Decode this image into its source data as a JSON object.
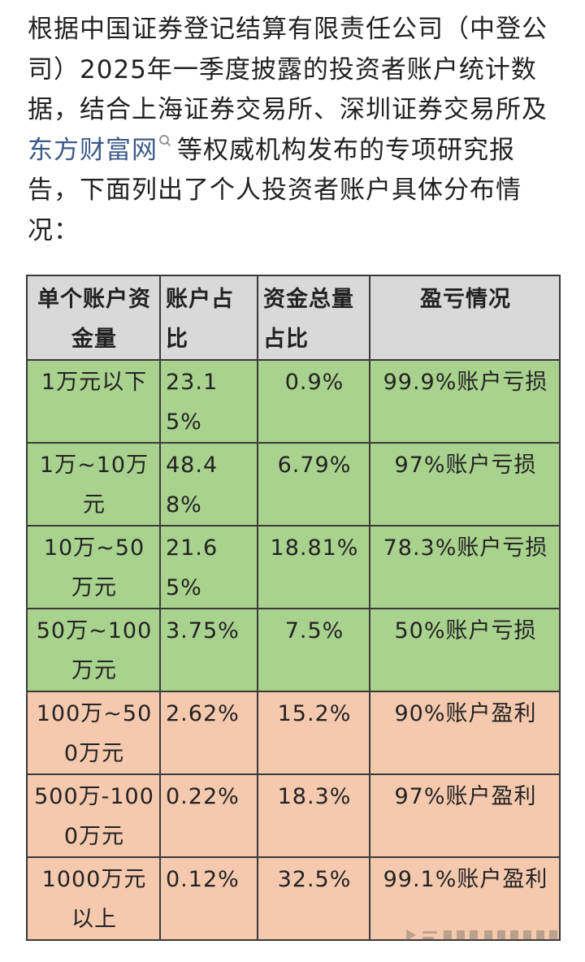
{
  "intro": {
    "text_before": "根据中国证券登记结算有限责任公司（中登公司）2025年一季度披露的投资者账户统计数据，结合上海证券交易所、深圳证券交易所及",
    "link_text": "东方财富网",
    "link_icon": "search-icon",
    "text_after": "等权威机构发布的专项研究报告，下面列出了个人投资者账户具体分布情况："
  },
  "table": {
    "headers": [
      "单个账户资金量",
      "账户占比",
      "资金总量占比",
      "盈亏情况"
    ],
    "rows": [
      {
        "type": "loss",
        "cells": [
          "1万元以下",
          "23.15%",
          "0.9%",
          "99.9%账户亏损"
        ]
      },
      {
        "type": "loss",
        "cells": [
          "1万~10万元",
          "48.48%",
          "6.79%",
          "97%账户亏损"
        ]
      },
      {
        "type": "loss",
        "cells": [
          "10万~50万元",
          "21.65%",
          "18.81%",
          "78.3%账户亏损"
        ]
      },
      {
        "type": "loss",
        "cells": [
          "50万~100万元",
          "3.75%",
          "7.5%",
          "50%账户亏损"
        ]
      },
      {
        "type": "profit",
        "cells": [
          "100万~500万元",
          "2.62%",
          "15.2%",
          "90%账户盈利"
        ]
      },
      {
        "type": "profit",
        "cells": [
          "500万-1000万元",
          "0.22%",
          "18.3%",
          "97%账户盈利"
        ]
      },
      {
        "type": "profit",
        "cells": [
          "1000万元以上",
          "0.12%",
          "32.5%",
          "99.1%账户盈利"
        ]
      }
    ]
  },
  "colors": {
    "loss_row": "#a9d28e",
    "profit_row": "#f5c9ae",
    "header_row": "#d9d9d9",
    "link": "#3c5a8a"
  }
}
